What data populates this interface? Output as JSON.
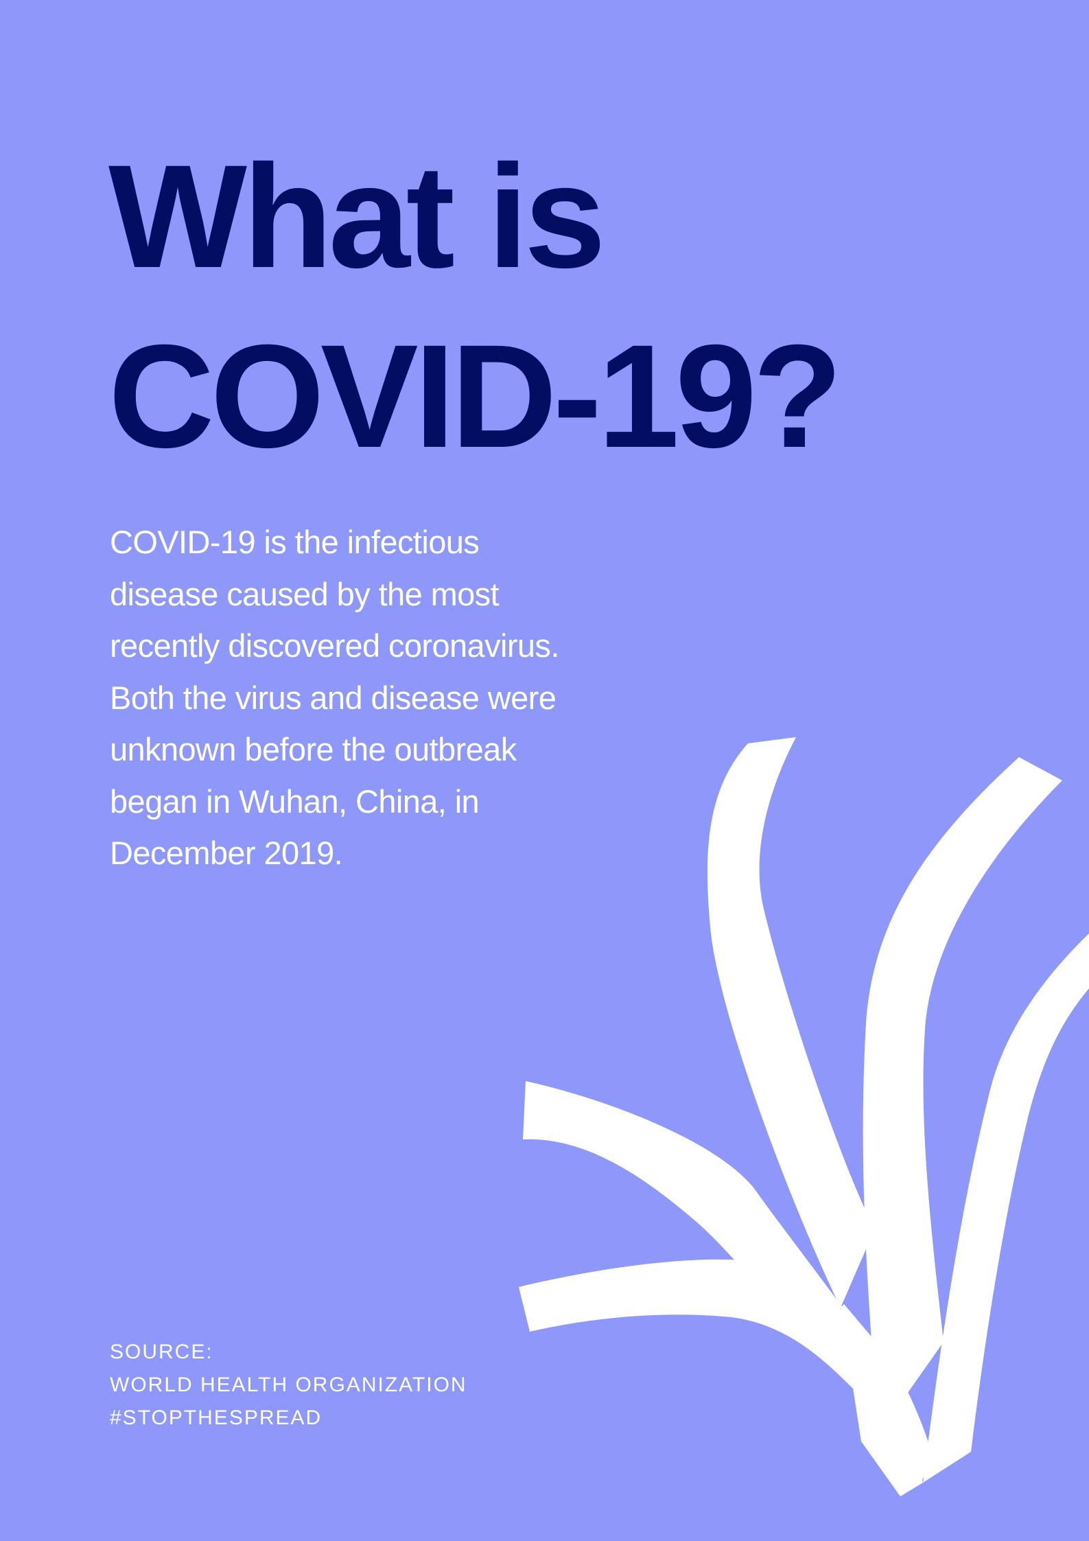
{
  "background_color": "#8e98fb",
  "title_color": "#020e62",
  "text_color": "#ffffff",
  "title": {
    "line1": "What is",
    "line2": "COVID-19?"
  },
  "body": {
    "lines": [
      "COVID-19 is the infectious",
      "disease caused by the most",
      "recently discovered coronavirus.",
      "Both the virus and disease were",
      "unknown before the outbreak",
      "began in Wuhan, China, in",
      "December 2019."
    ]
  },
  "footer": {
    "source_label": "SOURCE:",
    "organization": "WORLD HEALTH ORGANIZATION",
    "hashtag": "#STOPTHESPREAD"
  },
  "decoration": {
    "icon": "white-branching-arrow-icon"
  }
}
